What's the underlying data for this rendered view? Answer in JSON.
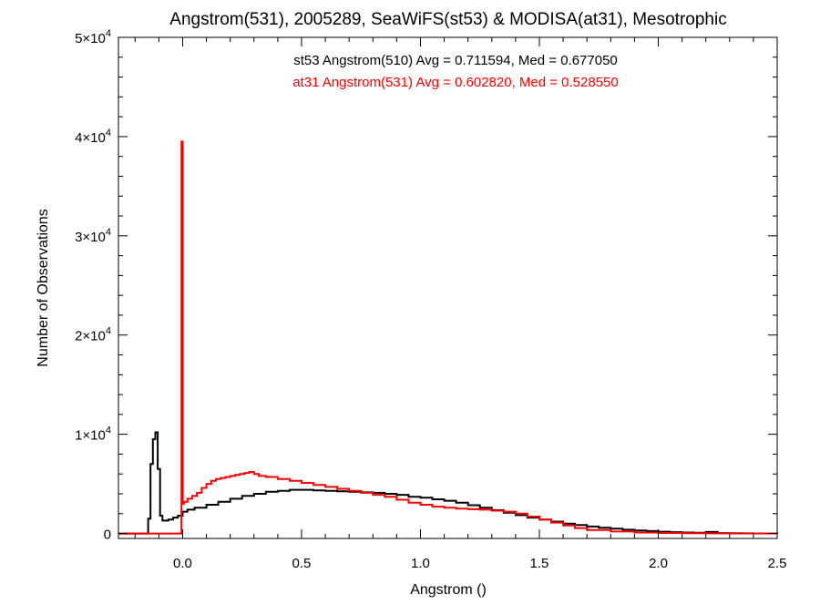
{
  "chart_data": {
    "type": "line",
    "title": "Angstrom(531), 2005289, SeaWiFS(st53) & MODISA(at31), Mesotrophic",
    "xlabel": "Angstrom ()",
    "ylabel": "Number of Observations",
    "xlim": [
      -0.27,
      2.5
    ],
    "ylim": [
      -500,
      50000
    ],
    "x_ticks": [
      {
        "value": 0.0,
        "label": "0.0"
      },
      {
        "value": 0.5,
        "label": "0.5"
      },
      {
        "value": 1.0,
        "label": "1.0"
      },
      {
        "value": 1.5,
        "label": "1.5"
      },
      {
        "value": 2.0,
        "label": "2.0"
      },
      {
        "value": 2.5,
        "label": "2.5"
      }
    ],
    "y_ticks": [
      {
        "value": 0,
        "mantissa": "0",
        "exponent": ""
      },
      {
        "value": 10000,
        "mantissa": "1×10",
        "exponent": "4"
      },
      {
        "value": 20000,
        "mantissa": "2×10",
        "exponent": "4"
      },
      {
        "value": 30000,
        "mantissa": "3×10",
        "exponent": "4"
      },
      {
        "value": 40000,
        "mantissa": "4×10",
        "exponent": "4"
      },
      {
        "value": 50000,
        "mantissa": "5×10",
        "exponent": "4"
      }
    ],
    "grid": false,
    "series": [
      {
        "name": "st53 Angstrom(510) Avg = 0.711594, Med = 0.677050",
        "color": "#000000",
        "step": true,
        "x": [
          -0.27,
          -0.15,
          -0.145,
          -0.135,
          -0.125,
          -0.115,
          -0.105,
          -0.095,
          -0.085,
          -0.06,
          -0.04,
          -0.02,
          0.0,
          0.02,
          0.05,
          0.1,
          0.15,
          0.2,
          0.25,
          0.3,
          0.35,
          0.4,
          0.45,
          0.5,
          0.55,
          0.6,
          0.65,
          0.7,
          0.75,
          0.8,
          0.85,
          0.9,
          0.95,
          1.0,
          1.05,
          1.1,
          1.15,
          1.2,
          1.25,
          1.3,
          1.35,
          1.4,
          1.45,
          1.5,
          1.55,
          1.6,
          1.65,
          1.7,
          1.75,
          1.8,
          1.85,
          1.9,
          1.95,
          2.0,
          2.05,
          2.1,
          2.15,
          2.2,
          2.25,
          2.3,
          2.35,
          2.4,
          2.5
        ],
        "values": [
          0,
          0,
          1500,
          7000,
          9500,
          10200,
          6500,
          1800,
          1300,
          1400,
          1600,
          1800,
          2200,
          2400,
          2600,
          2900,
          3200,
          3500,
          3800,
          4000,
          4200,
          4300,
          4400,
          4400,
          4350,
          4300,
          4250,
          4200,
          4150,
          4100,
          4000,
          3900,
          3700,
          3600,
          3450,
          3300,
          3100,
          2850,
          2600,
          2350,
          2100,
          1850,
          1600,
          1400,
          1200,
          1000,
          850,
          700,
          580,
          480,
          380,
          300,
          240,
          180,
          130,
          100,
          70,
          150,
          40,
          20,
          10,
          5,
          0
        ]
      },
      {
        "name": "at31 Angstrom(531) Avg = 0.602820, Med = 0.528550",
        "color": "#ff0000",
        "step": true,
        "x": [
          -0.27,
          -0.005,
          0.0,
          0.005,
          0.02,
          0.04,
          0.06,
          0.08,
          0.1,
          0.12,
          0.14,
          0.16,
          0.18,
          0.2,
          0.22,
          0.24,
          0.26,
          0.28,
          0.3,
          0.32,
          0.35,
          0.4,
          0.45,
          0.5,
          0.55,
          0.6,
          0.65,
          0.7,
          0.75,
          0.8,
          0.85,
          0.9,
          0.95,
          1.0,
          1.05,
          1.1,
          1.15,
          1.2,
          1.25,
          1.3,
          1.35,
          1.4,
          1.45,
          1.5,
          1.55,
          1.6,
          1.65,
          1.7,
          1.8,
          1.9,
          2.0,
          2.1,
          2.2,
          2.3,
          2.5
        ],
        "values": [
          0,
          39500,
          3000,
          3200,
          3500,
          3800,
          4100,
          4600,
          5000,
          5300,
          5500,
          5600,
          5700,
          5800,
          5900,
          6000,
          6100,
          6200,
          6000,
          5800,
          5700,
          5500,
          5300,
          5100,
          4900,
          4700,
          4500,
          4300,
          4100,
          3900,
          3700,
          3400,
          3100,
          2900,
          2700,
          2600,
          2500,
          2450,
          2400,
          2300,
          2200,
          2000,
          1700,
          1400,
          1100,
          800,
          550,
          350,
          200,
          100,
          50,
          30,
          15,
          5,
          0
        ]
      }
    ]
  }
}
